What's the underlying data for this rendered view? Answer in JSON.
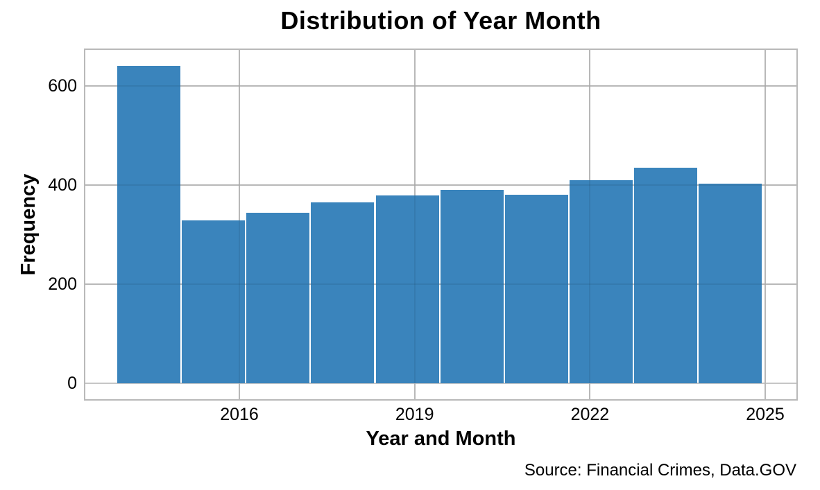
{
  "chart_data": {
    "type": "bar",
    "subtype": "histogram",
    "title": "Distribution of Year Month",
    "xlabel": "Year and Month",
    "ylabel": "Frequency",
    "source_note": "Source: Financial Crimes, Data.GOV",
    "legend": false,
    "grid": true,
    "colors": {
      "bar": "#3a84bc",
      "grid": "#c6c6c6",
      "grid_overlay": "rgba(0,0,0,0.07)",
      "frame": "#b9b9b9",
      "text": "#000000",
      "background": "#ffffff"
    },
    "axes": {
      "xlim_years": [
        2013.364,
        2025.534
      ],
      "ylim": [
        -32,
        673
      ]
    },
    "y_ticks": [
      {
        "value": 0,
        "label": "0"
      },
      {
        "value": 200,
        "label": "200"
      },
      {
        "value": 400,
        "label": "400"
      },
      {
        "value": 600,
        "label": "600"
      }
    ],
    "x_ticks": [
      {
        "year": 2016,
        "label": "2016"
      },
      {
        "year": 2019,
        "label": "2019"
      },
      {
        "year": 2022,
        "label": "2022"
      },
      {
        "year": 2025,
        "label": "2025"
      }
    ],
    "bins": {
      "start_year": 2013.9,
      "bin_width_years": 1.1053,
      "count": 10
    },
    "values": [
      641,
      329,
      344,
      365,
      380,
      391,
      381,
      410,
      435,
      403
    ]
  }
}
